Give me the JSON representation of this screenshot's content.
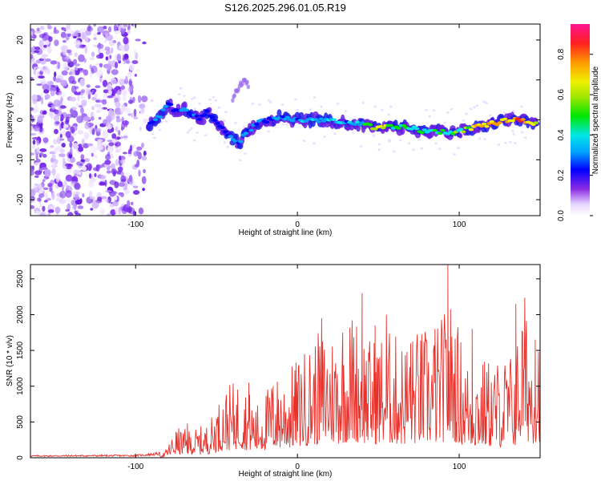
{
  "title": "S126.2025.296.01.05.R19",
  "colors": {
    "series_line": "#e8302a",
    "axis": "#000000",
    "scatter_purple": "#7b2cf0",
    "track_blue": "#1e1ee6"
  },
  "chart_data": [
    {
      "type": "heatmap",
      "name": "spectrogram",
      "xlabel": "Height of straight line (km)",
      "ylabel": "Frequency (Hz)",
      "xlim": [
        -165,
        150
      ],
      "ylim": [
        -24,
        24
      ],
      "x_ticks": [
        -100,
        0,
        100
      ],
      "x_tick_labels": [
        "-100",
        "0",
        "100"
      ],
      "y_ticks": [
        -20,
        -10,
        0,
        10,
        20
      ],
      "y_tick_labels": [
        "-20",
        "-10",
        "0",
        "10",
        "20"
      ],
      "noise_region_x": [
        -165,
        -92
      ],
      "ridge": {
        "x": [
          -92,
          -85,
          -80,
          -75,
          -70,
          -65,
          -60,
          -55,
          -50,
          -45,
          -40,
          -36,
          -32,
          -28,
          -25,
          -20,
          -15,
          -10,
          -5,
          0,
          10,
          20,
          30,
          40,
          50,
          60,
          70,
          80,
          90,
          100,
          110,
          120,
          130,
          140,
          148
        ],
        "y": [
          -1,
          1,
          4,
          2,
          3,
          1,
          0,
          2,
          -1,
          -3,
          -5,
          -6,
          -3,
          -2,
          -1,
          0,
          0,
          1,
          0,
          0,
          0,
          0,
          -1,
          -1,
          -2,
          -2,
          -2,
          -3,
          -3,
          -3,
          -2,
          -1,
          0,
          0,
          -1
        ]
      },
      "ridge_amplitude": [
        0.3,
        0.4,
        0.35,
        0.3,
        0.4,
        0.3,
        0.3,
        0.35,
        0.3,
        0.3,
        0.35,
        0.4,
        0.35,
        0.35,
        0.3,
        0.35,
        0.35,
        0.35,
        0.35,
        0.4,
        0.4,
        0.45,
        0.4,
        0.45,
        0.8,
        0.6,
        0.5,
        0.55,
        0.5,
        0.6,
        0.8,
        0.85,
        0.9,
        0.9,
        0.6
      ],
      "upper_branch": {
        "x": [
          -40,
          -38,
          -35,
          -32,
          -30
        ],
        "y": [
          5,
          7,
          9,
          10,
          8
        ]
      },
      "colorbar": {
        "label": "Normalized spectral amplitude",
        "range": [
          0.0,
          0.95
        ],
        "ticks": [
          0.0,
          0.2,
          0.4,
          0.6,
          0.8
        ],
        "tick_labels": [
          "0.0",
          "0.2",
          "0.4",
          "0.6",
          "0.8"
        ]
      }
    },
    {
      "type": "line",
      "name": "snr",
      "xlabel": "Height of straight line (km)",
      "ylabel": "SNR (10 * v/v)",
      "xlim": [
        -165,
        150
      ],
      "ylim": [
        0,
        2700
      ],
      "x_ticks": [
        -100,
        0,
        100
      ],
      "x_tick_labels": [
        "-100",
        "0",
        "100"
      ],
      "y_ticks": [
        0,
        500,
        1000,
        1500,
        2000,
        2500
      ],
      "y_tick_labels": [
        "0",
        "500",
        "1000",
        "1500",
        "2000",
        "2500"
      ],
      "envelope": {
        "x": [
          -165,
          -100,
          -82,
          -75,
          -65,
          -55,
          -45,
          -35,
          -25,
          -15,
          -5,
          5,
          15,
          25,
          35,
          45,
          55,
          65,
          75,
          85,
          95,
          100,
          105,
          115,
          125,
          135,
          140,
          145,
          150
        ],
        "y": [
          25,
          30,
          60,
          300,
          280,
          350,
          700,
          800,
          550,
          800,
          900,
          1100,
          1300,
          1300,
          1500,
          1200,
          1300,
          1200,
          1300,
          1300,
          1600,
          1300,
          1000,
          1000,
          1000,
          1100,
          1700,
          1300,
          1500
        ]
      },
      "peaks": [
        {
          "x": -68,
          "y": 480
        },
        {
          "x": -50,
          "y": 550
        },
        {
          "x": -30,
          "y": 1050
        },
        {
          "x": -15,
          "y": 1000
        },
        {
          "x": 15,
          "y": 1950
        },
        {
          "x": 28,
          "y": 1750
        },
        {
          "x": 40,
          "y": 2300
        },
        {
          "x": 48,
          "y": 1850
        },
        {
          "x": 55,
          "y": 2000
        },
        {
          "x": 70,
          "y": 1600
        },
        {
          "x": 85,
          "y": 1800
        },
        {
          "x": 93,
          "y": 2700
        },
        {
          "x": 108,
          "y": 1800
        },
        {
          "x": 135,
          "y": 2150
        },
        {
          "x": 147,
          "y": 1650
        }
      ]
    }
  ]
}
